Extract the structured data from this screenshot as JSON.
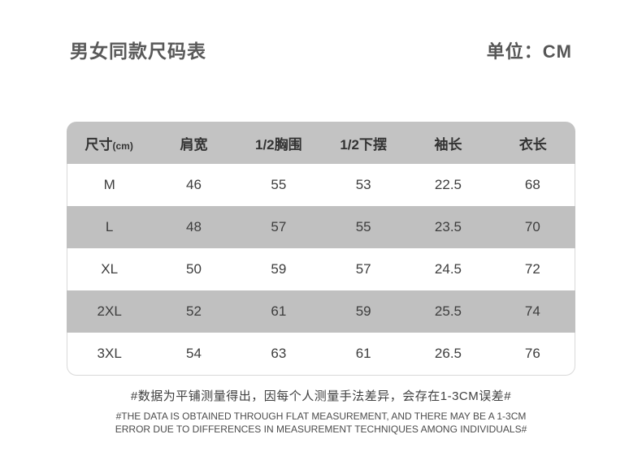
{
  "page": {
    "title": "男女同款尺码表",
    "unit_label": "单位：CM"
  },
  "chart_data": {
    "type": "table",
    "title": "男女同款尺码表",
    "unit": "CM",
    "columns": [
      "尺寸(cm)",
      "肩宽",
      "1/2胸围",
      "1/2下摆",
      "袖长",
      "衣长"
    ],
    "rows": [
      [
        "M",
        46,
        55,
        53,
        22.5,
        68
      ],
      [
        "L",
        48,
        57,
        55,
        23.5,
        70
      ],
      [
        "XL",
        50,
        59,
        57,
        24.5,
        72
      ],
      [
        "2XL",
        52,
        61,
        59,
        25.5,
        74
      ],
      [
        "3XL",
        54,
        63,
        61,
        26.5,
        76
      ]
    ]
  },
  "table": {
    "columns": {
      "c0_main": "尺寸",
      "c0_sub": "(cm)",
      "c1": "肩宽",
      "c2": "1/2胸围",
      "c3": "1/2下摆",
      "c4": "袖长",
      "c5": "衣长"
    },
    "rows": [
      {
        "size": "M",
        "v1": "46",
        "v2": "55",
        "v3": "53",
        "v4": "22.5",
        "v5": "68"
      },
      {
        "size": "L",
        "v1": "48",
        "v2": "57",
        "v3": "55",
        "v4": "23.5",
        "v5": "70"
      },
      {
        "size": "XL",
        "v1": "50",
        "v2": "59",
        "v3": "57",
        "v4": "24.5",
        "v5": "72"
      },
      {
        "size": "2XL",
        "v1": "52",
        "v2": "61",
        "v3": "59",
        "v4": "25.5",
        "v5": "74"
      },
      {
        "size": "3XL",
        "v1": "54",
        "v2": "63",
        "v3": "61",
        "v4": "26.5",
        "v5": "76"
      }
    ]
  },
  "notes": {
    "cn": "#数据为平铺测量得出，因每个人测量手法差异，会存在1-3CM误差#",
    "en_line1": "#THE DATA IS OBTAINED THROUGH FLAT MEASUREMENT, AND THERE MAY BE A 1-3CM",
    "en_line2": "ERROR DUE TO DIFFERENCES IN MEASUREMENT TECHNIQUES AMONG INDIVIDUALS#"
  },
  "colors": {
    "header_bg": "#c3c3c3",
    "stripe_bg": "#c0c0c0",
    "title_text": "#595959",
    "border": "#d9d9d9"
  }
}
